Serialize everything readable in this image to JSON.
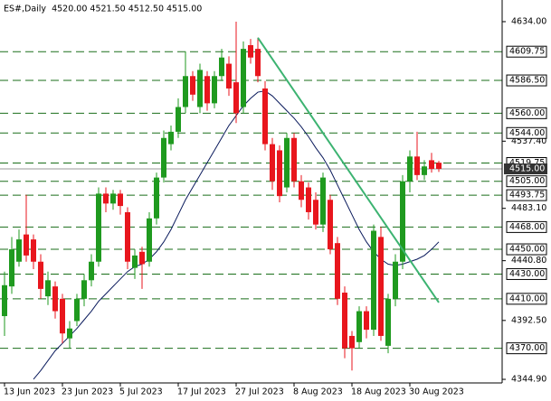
{
  "chart_data": {
    "type": "candlestick",
    "title": "ES#,Daily  4520.00 4521.50 4512.50 4515.00",
    "categories": [
      "13 Jun 2023",
      null,
      null,
      null,
      null,
      null,
      null,
      null,
      "23 Jun 2023",
      null,
      null,
      null,
      null,
      null,
      null,
      null,
      "5 Jul 2023",
      null,
      null,
      null,
      null,
      null,
      null,
      null,
      "17 Jul 2023",
      null,
      null,
      null,
      null,
      null,
      null,
      null,
      "27 Jul 2023",
      null,
      null,
      null,
      null,
      null,
      null,
      null,
      "8 Aug 2023",
      null,
      null,
      null,
      null,
      null,
      null,
      null,
      "18 Aug 2023",
      null,
      null,
      null,
      null,
      null,
      null,
      null,
      "30 Aug 2023",
      null,
      null,
      null,
      null
    ],
    "open": [
      4396,
      4420,
      4440,
      4462,
      4458,
      4440,
      4412,
      4420,
      4410,
      4378,
      4392,
      4410,
      4425,
      4440,
      4495,
      4487,
      4495,
      4480,
      4435,
      4448,
      4440,
      4475,
      4508,
      4535,
      4545,
      4565,
      4590,
      4565,
      4590,
      4568,
      4590,
      4600,
      4585,
      4565,
      4615,
      4612,
      4580,
      4535,
      4530,
      4500,
      4540,
      4505,
      4500,
      4490,
      4470,
      4490,
      4455,
      4415,
      4380,
      4375,
      4400,
      4385,
      4460,
      4372,
      4410,
      4440,
      4505,
      4525,
      4510,
      4522,
      4520
    ],
    "high": [
      4432,
      4460,
      4466,
      4494,
      4462,
      4446,
      4432,
      4424,
      4414,
      4392,
      4414,
      4430,
      4446,
      4500,
      4500,
      4498,
      4498,
      4484,
      4450,
      4452,
      4480,
      4512,
      4546,
      4550,
      4572,
      4610,
      4594,
      4600,
      4594,
      4594,
      4612,
      4606,
      4634,
      4618,
      4620,
      4621,
      4586,
      4540,
      4534,
      4544,
      4544,
      4510,
      4504,
      4496,
      4512,
      4494,
      4460,
      4420,
      4384,
      4404,
      4404,
      4470,
      4468,
      4414,
      4446,
      4510,
      4530,
      4545,
      4522,
      4528,
      4521.5
    ],
    "low": [
      4380,
      4414,
      4436,
      4440,
      4434,
      4410,
      4405,
      4394,
      4374,
      4370,
      4388,
      4404,
      4420,
      4436,
      4480,
      4482,
      4478,
      4434,
      4426,
      4418,
      4436,
      4470,
      4504,
      4530,
      4540,
      4560,
      4570,
      4560,
      4562,
      4564,
      4586,
      4574,
      4552,
      4560,
      4600,
      4585,
      4530,
      4498,
      4488,
      4496,
      4500,
      4484,
      4474,
      4466,
      4464,
      4446,
      4405,
      4362,
      4352,
      4370,
      4378,
      4380,
      4376,
      4366,
      4404,
      4434,
      4496,
      4506,
      4506,
      4512,
      4512.5
    ],
    "close": [
      4421,
      4450,
      4458,
      4445,
      4440,
      4418,
      4425,
      4400,
      4382,
      4386,
      4410,
      4425,
      4440,
      4495,
      4487,
      4495,
      4485,
      4440,
      4445,
      4438,
      4475,
      4508,
      4540,
      4545,
      4565,
      4590,
      4575,
      4595,
      4568,
      4590,
      4605,
      4580,
      4560,
      4612,
      4605,
      4590,
      4535,
      4505,
      4493,
      4540,
      4505,
      4490,
      4480,
      4470,
      4508,
      4450,
      4410,
      4370,
      4370,
      4400,
      4385,
      4465,
      4380,
      4410,
      4440,
      4505,
      4525,
      4510,
      4517,
      4515,
      4515
    ],
    "moving_average": {
      "color": "#0a1a5c",
      "values": [
        null,
        null,
        null,
        null,
        4345,
        4352,
        4360,
        4368,
        4374,
        4380,
        4386,
        4393,
        4400,
        4408,
        4414,
        4420,
        4426,
        4432,
        4436,
        4438,
        4442,
        4448,
        4456,
        4466,
        4478,
        4490,
        4500,
        4510,
        4520,
        4530,
        4540,
        4550,
        4558,
        4566,
        4572,
        4577,
        4578,
        4574,
        4568,
        4562,
        4556,
        4549,
        4541,
        4532,
        4524,
        4514,
        4502,
        4490,
        4478,
        4466,
        4456,
        4448,
        4442,
        4438,
        4437,
        4438,
        4440,
        4442,
        4445,
        4450,
        4456
      ]
    },
    "up_color": "#1f9a1f",
    "down_color": "#e8161d",
    "ylim": [
      4342,
      4651.5
    ],
    "yticks": [
      {
        "value": 4634,
        "label": "4634.00"
      },
      {
        "value": 4537.4,
        "label": "4537.40"
      },
      {
        "value": 4483.1,
        "label": "4483.10"
      },
      {
        "value": 4440.8,
        "label": "4440.80"
      },
      {
        "value": 4392.5,
        "label": "4392.50"
      },
      {
        "value": 4344.9,
        "label": "4344.90"
      }
    ],
    "levels": [
      {
        "value": 4609.75,
        "label": "4609.75"
      },
      {
        "value": 4586.5,
        "label": "4586.50"
      },
      {
        "value": 4560,
        "label": "4560.00"
      },
      {
        "value": 4544,
        "label": "4544.00"
      },
      {
        "value": 4519.75,
        "label": "4519.75"
      },
      {
        "value": 4505,
        "label": "4505.00"
      },
      {
        "value": 4493.75,
        "label": "4493.75"
      },
      {
        "value": 4468,
        "label": "4468.00"
      },
      {
        "value": 4450,
        "label": "4450.00"
      },
      {
        "value": 4430,
        "label": "4430.00"
      },
      {
        "value": 4410,
        "label": "4410.00"
      },
      {
        "value": 4370,
        "label": "4370.00"
      }
    ],
    "level_color": "#1a6e1a",
    "last_price": {
      "value": 4515,
      "label": "4515.00"
    },
    "trendline": {
      "color": "#3cb371",
      "from": {
        "index": 35,
        "value": 4621
      },
      "to": {
        "index": 60,
        "value": 4407
      }
    }
  }
}
